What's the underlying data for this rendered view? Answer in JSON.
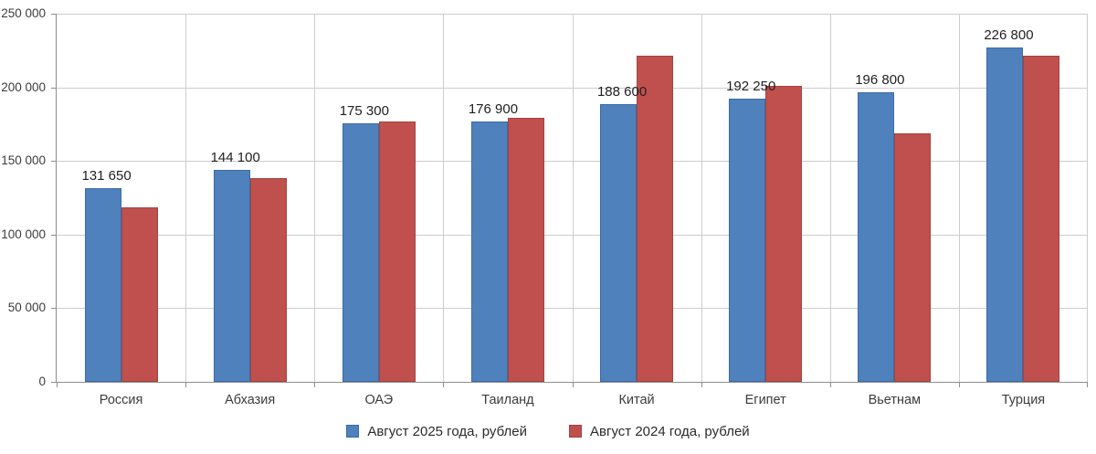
{
  "chart_data": {
    "type": "bar",
    "title": "",
    "categories": [
      "Россия",
      "Абхазия",
      "ОАЭ",
      "Таиланд",
      "Китай",
      "Египет",
      "Вьетнам",
      "Турция"
    ],
    "series": [
      {
        "name": "Август 2025 года, рублей",
        "color": "#4f81bd",
        "border_color": "#3d6ba5",
        "values": [
          131650,
          144100,
          175300,
          176900,
          188600,
          192250,
          196800,
          226800
        ],
        "data_labels": [
          "131 650",
          "144 100",
          "175 300",
          "176 900",
          "188 600",
          "192 250",
          "196 800",
          "226 800"
        ]
      },
      {
        "name": "Август 2024 года, рублей",
        "color": "#c0504d",
        "border_color": "#a2433f",
        "values": [
          118300,
          138500,
          176700,
          179400,
          221500,
          201000,
          169000,
          221500
        ],
        "data_labels": null
      }
    ],
    "ylim": [
      0,
      250000
    ],
    "yticks": [
      {
        "value": 0,
        "label": "0"
      },
      {
        "value": 50000,
        "label": "50 000"
      },
      {
        "value": 100000,
        "label": "100 000"
      },
      {
        "value": 150000,
        "label": "150 000"
      },
      {
        "value": 200000,
        "label": "200 000"
      },
      {
        "value": 250000,
        "label": "250 000"
      }
    ],
    "grid": true,
    "legend_position": "bottom"
  },
  "styles": {
    "background": "#ffffff",
    "gridline_color": "#cdcdcd",
    "axis_color": "#8e8e8e",
    "tick_text_color": "#3c3c3c",
    "data_label_color": "#1f1f1f"
  }
}
